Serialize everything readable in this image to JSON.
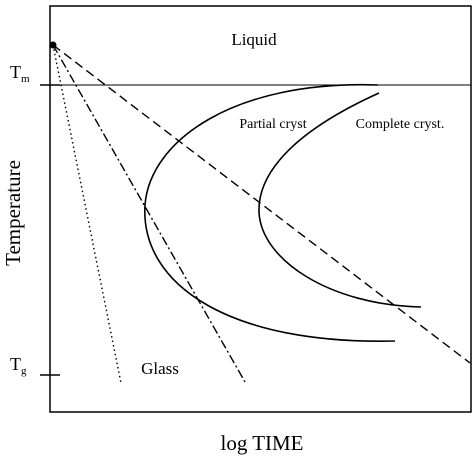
{
  "diagram": {
    "xlabel": "log TIME",
    "ylabel": "Temperature",
    "ticks": {
      "tm": {
        "main": "T",
        "sub": "m"
      },
      "tg": {
        "main": "T",
        "sub": "g"
      }
    },
    "regions": {
      "liquid": "Liquid",
      "glass": "Glass"
    },
    "curves": {
      "partial": "Partial cryst",
      "complete": "Complete cryst."
    }
  }
}
